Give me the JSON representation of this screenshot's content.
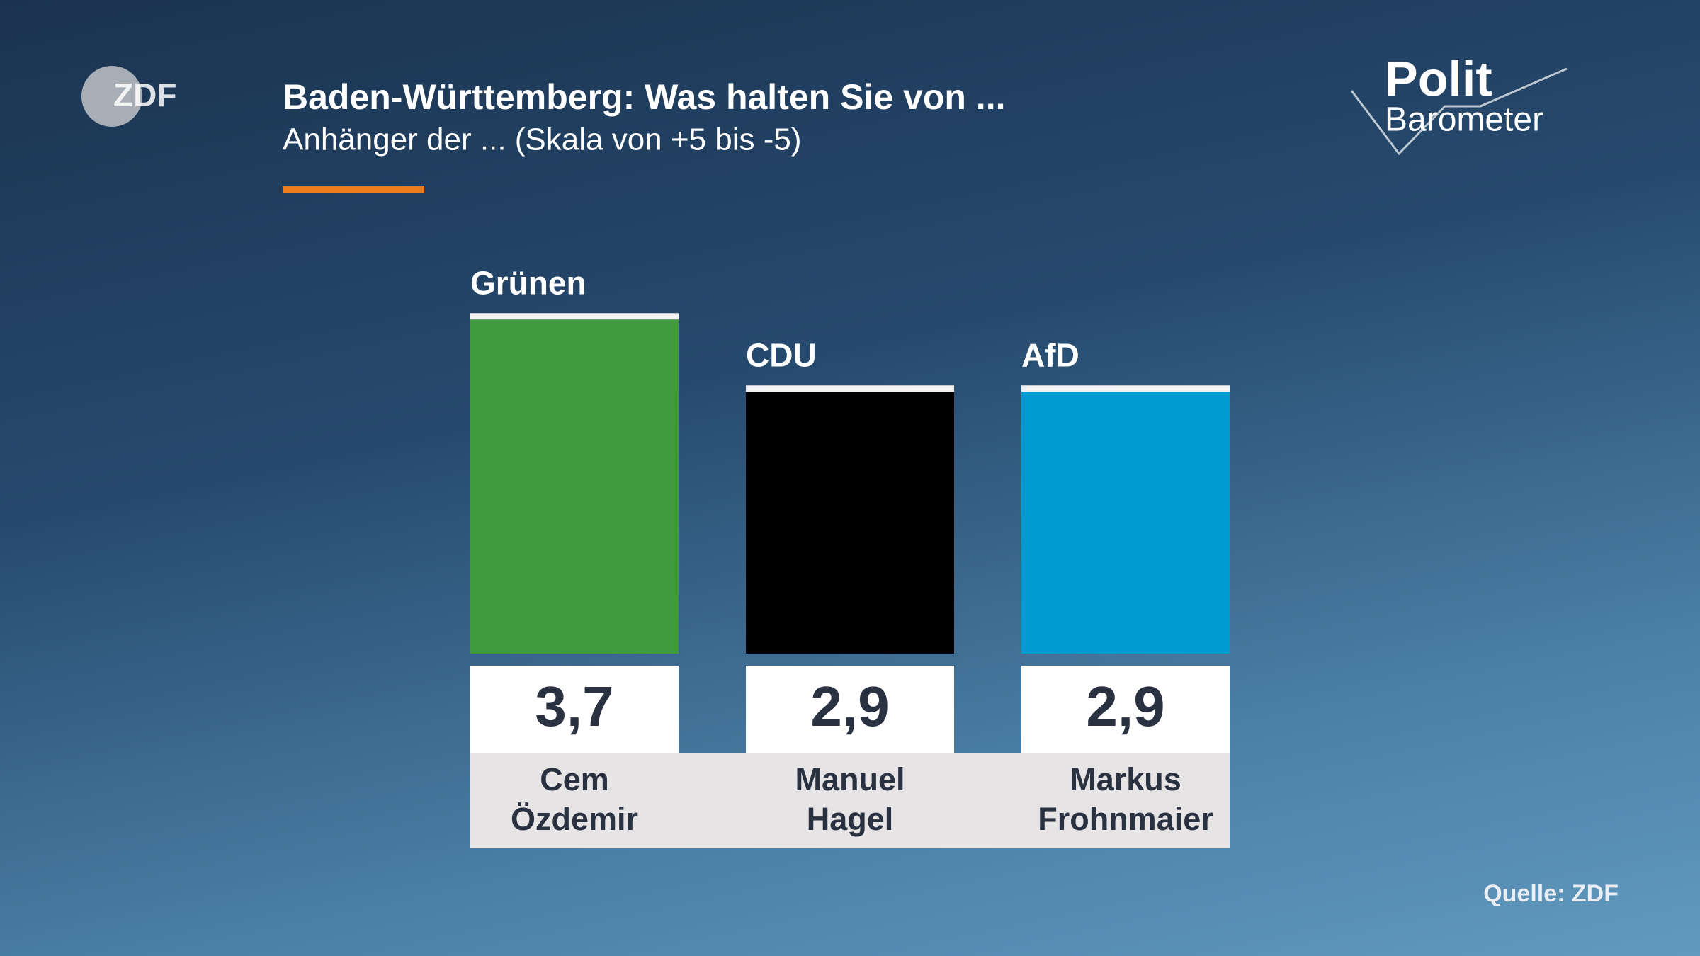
{
  "logo": {
    "broadcaster": "ZDF",
    "program": [
      "Polit",
      "Barometer"
    ]
  },
  "chart_data": {
    "type": "bar",
    "title": "Baden-Württemberg: Was halten Sie von ...",
    "subtitle": "Anhänger der ... (Skala von +5 bis -5)",
    "source": "Quelle: ZDF",
    "categories": [
      "Grünen",
      "CDU",
      "AfD"
    ],
    "values": [
      3.7,
      2.9,
      2.9
    ],
    "value_labels": [
      "3,7",
      "2,9",
      "2,9"
    ],
    "candidates": [
      [
        "Cem",
        "Özdemir"
      ],
      [
        "Manuel",
        "Hagel"
      ],
      [
        "Markus",
        "Frohnmaier"
      ]
    ],
    "colors": [
      "#3f9a3d",
      "#000000",
      "#009bd0"
    ]
  }
}
